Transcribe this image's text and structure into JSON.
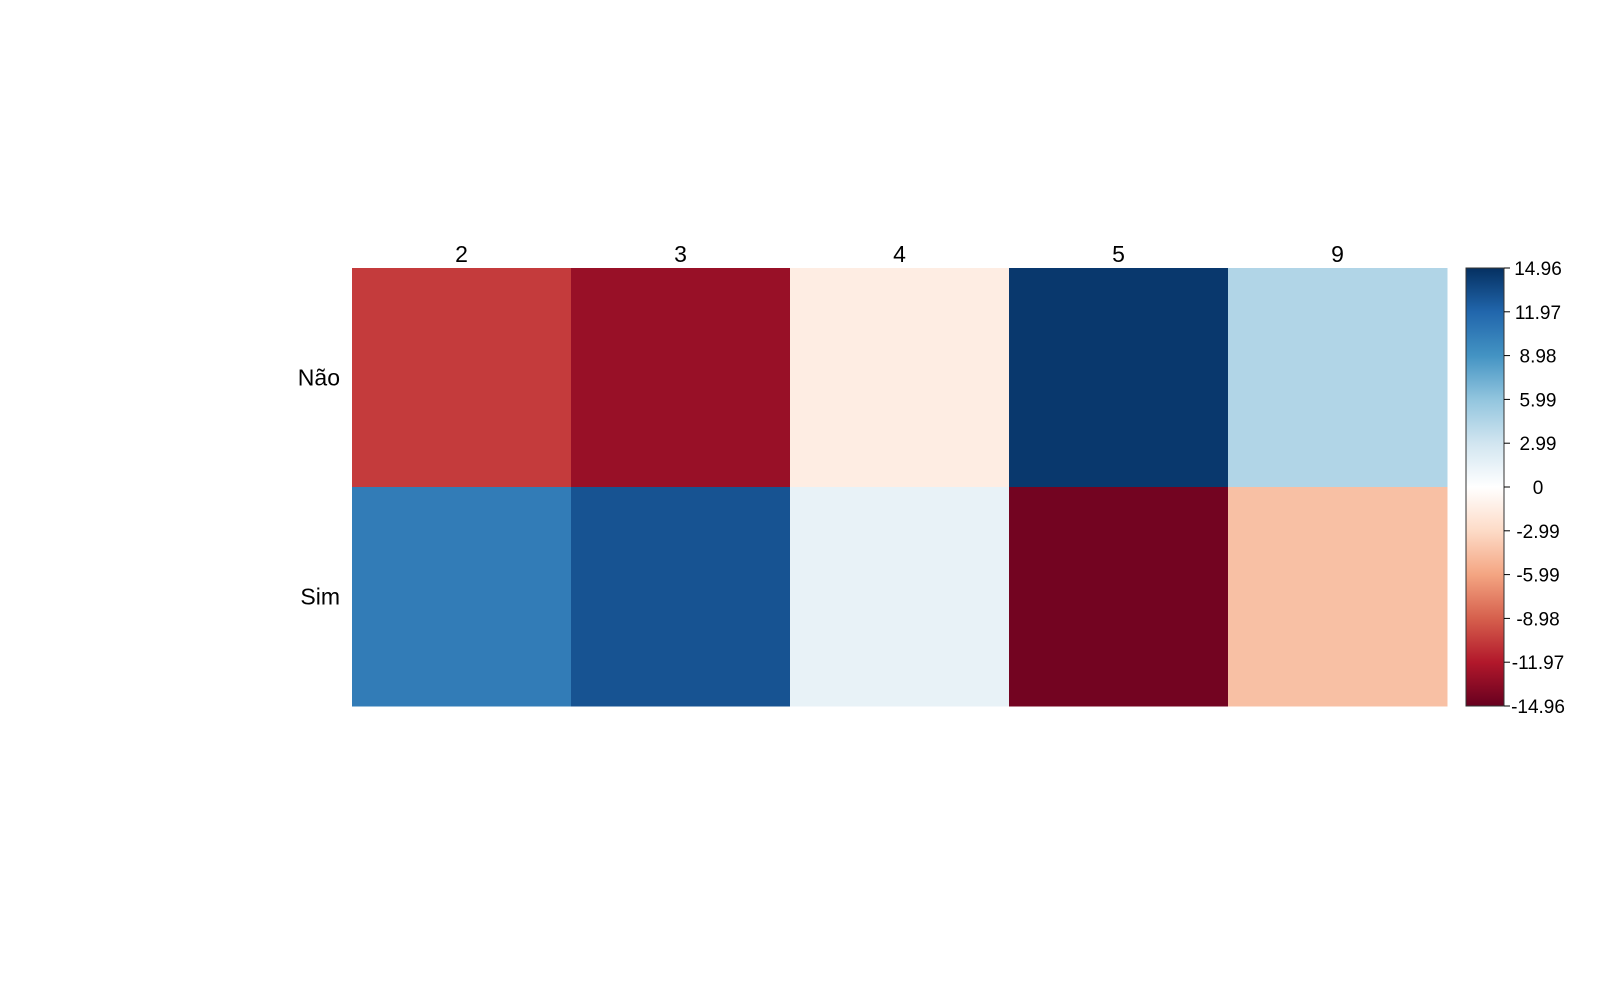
{
  "chart_data": {
    "type": "heatmap",
    "rows": [
      "Não",
      "Sim"
    ],
    "columns": [
      "2",
      "3",
      "4",
      "5",
      "9"
    ],
    "values": [
      [
        -10.5,
        -13.0,
        -1.5,
        14.5,
        4.5
      ],
      [
        10.5,
        13.0,
        1.5,
        -14.5,
        -4.5
      ]
    ],
    "color_range": [
      -14.96,
      14.96
    ],
    "colorbar_ticks": [
      "14.96",
      "11.97",
      "8.98",
      "5.99",
      "2.99",
      "0",
      "-2.99",
      "-5.99",
      "-8.98",
      "-11.97",
      "-14.96"
    ],
    "colorscale": [
      "#67001f",
      "#b2182b",
      "#d6604d",
      "#f4a582",
      "#fddbc7",
      "#ffffff",
      "#d1e5f0",
      "#92c5de",
      "#4393c3",
      "#2166ac",
      "#053061"
    ]
  }
}
